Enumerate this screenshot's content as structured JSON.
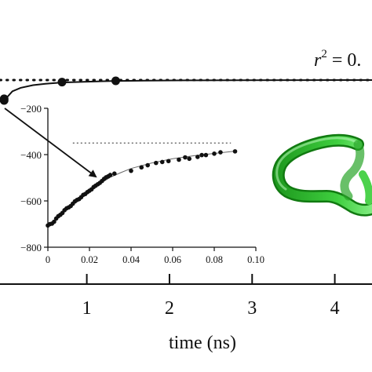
{
  "annotation": {
    "lhs": "r",
    "sup": "2",
    "rhs": " = 0."
  },
  "colors": {
    "curve": "#111111",
    "tube_dark": "#1a8f1a",
    "tube_light": "#5fe05f",
    "guide": "#555555"
  },
  "chart_data": [
    {
      "type": "line",
      "title": "",
      "xlabel": "time (ns)",
      "ylabel": "",
      "xlim": [
        -0.05,
        4.45
      ],
      "x_ticks": [
        1,
        2,
        3,
        4
      ],
      "x_tick_labels": [
        "1",
        "2",
        "3",
        "4"
      ],
      "asymptote_style": "dotted",
      "grid": false,
      "series": [
        {
          "fit_x": [
            0,
            0.1,
            0.2,
            0.35,
            0.5,
            0.7,
            1.0,
            1.3,
            1.7,
            2.2,
            2.8,
            3.4,
            4.0,
            4.45
          ],
          "fit_rel": [
            0.0,
            0.45,
            0.62,
            0.75,
            0.82,
            0.88,
            0.92,
            0.95,
            0.97,
            0.985,
            0.992,
            0.996,
            0.999,
            1.0
          ],
          "points_x": [
            0.0,
            0.0,
            0.7,
            1.35
          ],
          "points_rel": [
            0.0,
            0.08,
            0.9,
            0.96
          ]
        }
      ]
    },
    {
      "type": "scatter",
      "title": "",
      "xlabel": "",
      "ylabel": "",
      "xlim": [
        0,
        0.1
      ],
      "ylim": [
        -800,
        -200
      ],
      "x_ticks": [
        0,
        0.02,
        0.04,
        0.06,
        0.08,
        0.1
      ],
      "x_tick_labels": [
        "0",
        "0.02",
        "0.04",
        "0.06",
        "0.08",
        "0.10"
      ],
      "y_ticks": [
        -800,
        -600,
        -400,
        -200
      ],
      "y_tick_labels": [
        "−800",
        "−600",
        "−400",
        "−200"
      ],
      "asymptote_y": -350,
      "grid": false,
      "series": [
        {
          "x": [
            0.0,
            0.001,
            0.002,
            0.003,
            0.004,
            0.005,
            0.006,
            0.007,
            0.008,
            0.009,
            0.01,
            0.011,
            0.012,
            0.013,
            0.014,
            0.015,
            0.016,
            0.017,
            0.018,
            0.019,
            0.02,
            0.021,
            0.022,
            0.023,
            0.024,
            0.025,
            0.026,
            0.027,
            0.028,
            0.029,
            0.03,
            0.032,
            0.04,
            0.045,
            0.048,
            0.052,
            0.055,
            0.058,
            0.063,
            0.066,
            0.068,
            0.072,
            0.074,
            0.076,
            0.08,
            0.083,
            0.09
          ],
          "y": [
            -706,
            -700,
            -698,
            -690,
            -676,
            -666,
            -660,
            -652,
            -640,
            -632,
            -628,
            -622,
            -612,
            -602,
            -596,
            -592,
            -584,
            -574,
            -570,
            -562,
            -556,
            -550,
            -540,
            -534,
            -528,
            -522,
            -514,
            -505,
            -498,
            -494,
            -488,
            -482,
            -470,
            -455,
            -446,
            -436,
            -432,
            -428,
            -422,
            -412,
            -418,
            -410,
            -402,
            -402,
            -396,
            -390,
            -386
          ]
        }
      ],
      "fit_x": [
        0,
        0.004,
        0.008,
        0.012,
        0.016,
        0.02,
        0.025,
        0.03,
        0.035,
        0.04,
        0.05,
        0.06,
        0.07,
        0.08,
        0.09
      ],
      "fit_y": [
        -707,
        -680,
        -645,
        -612,
        -582,
        -555,
        -525,
        -498,
        -478,
        -460,
        -436,
        -418,
        -405,
        -395,
        -385
      ]
    }
  ]
}
